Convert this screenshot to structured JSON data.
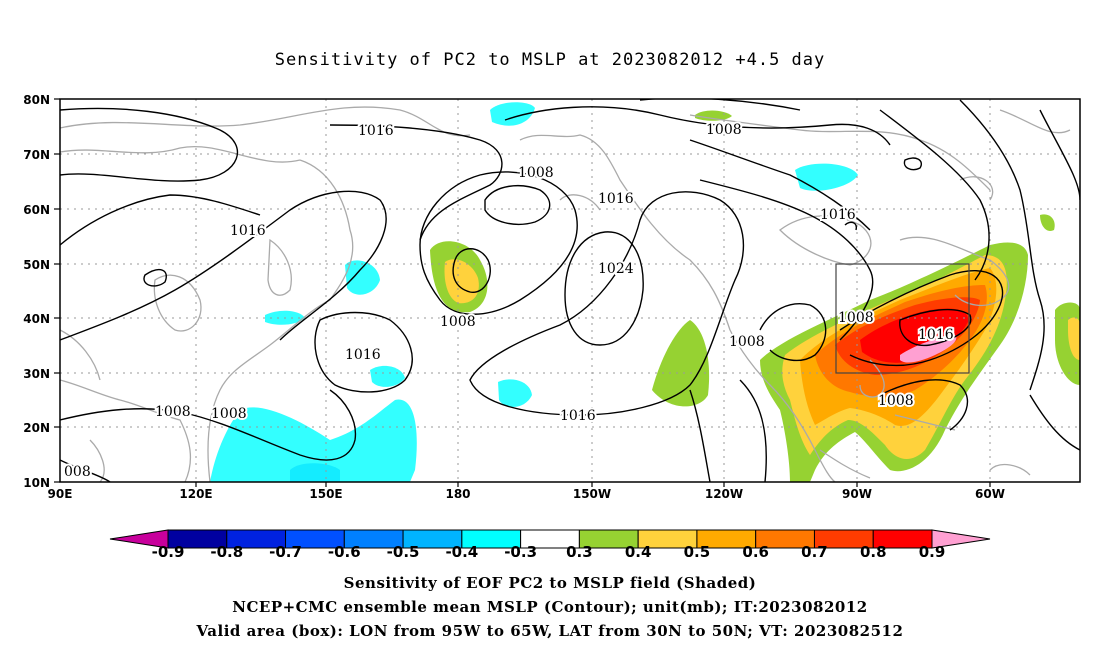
{
  "title": "Sensitivity of PC2 to MSLP at 2023082012 +4.5 day",
  "map": {
    "lat_labels": [
      "80N",
      "70N",
      "60N",
      "50N",
      "40N",
      "30N",
      "20N",
      "10N"
    ],
    "lon_labels": [
      "90E",
      "120E",
      "150E",
      "180",
      "150W",
      "120W",
      "90W",
      "60W"
    ],
    "contour_labels": [
      {
        "text": "1016",
        "id": "c1"
      },
      {
        "text": "1008",
        "id": "c2"
      },
      {
        "text": "1008",
        "id": "c3"
      },
      {
        "text": "1016",
        "id": "c4"
      },
      {
        "text": "1016",
        "id": "c5"
      },
      {
        "text": "1016",
        "id": "c6"
      },
      {
        "text": "1024",
        "id": "c7"
      },
      {
        "text": "1008",
        "id": "c8"
      },
      {
        "text": "1016",
        "id": "c9"
      },
      {
        "text": "1008",
        "id": "c10"
      },
      {
        "text": "1008",
        "id": "c11"
      },
      {
        "text": "1016",
        "id": "c12"
      },
      {
        "text": "1008",
        "id": "c13"
      },
      {
        "text": "1016",
        "id": "c14"
      },
      {
        "text": "1008",
        "id": "c15"
      },
      {
        "text": "1008",
        "id": "c16"
      },
      {
        "text": "008",
        "id": "c17"
      }
    ],
    "valid_box": {
      "lon_from": "95W",
      "lon_to": "65W",
      "lat_from": "30N",
      "lat_to": "50N"
    }
  },
  "colorbar": {
    "labels": [
      "-0.9",
      "-0.8",
      "-0.7",
      "-0.6",
      "-0.5",
      "-0.4",
      "-0.3",
      "0.3",
      "0.4",
      "0.5",
      "0.6",
      "0.7",
      "0.8",
      "0.9"
    ],
    "colors": [
      "#c8009c",
      "#0000a0",
      "#0022e0",
      "#0050ff",
      "#0080ff",
      "#00b4ff",
      "#00ffff",
      "#ffffff",
      "#96d232",
      "#ffd23c",
      "#ffaa00",
      "#ff7800",
      "#ff3c00",
      "#ff0000",
      "#ffa0d2"
    ]
  },
  "caption": {
    "line1": "Sensitivity of EOF PC2 to MSLP field (Shaded)",
    "line2": "NCEP+CMC ensemble mean MSLP (Contour); unit(mb); IT:2023082012",
    "line3": "Valid area (box): LON from 95W to 65W, LAT from 30N to 50N; VT: 2023082512"
  }
}
